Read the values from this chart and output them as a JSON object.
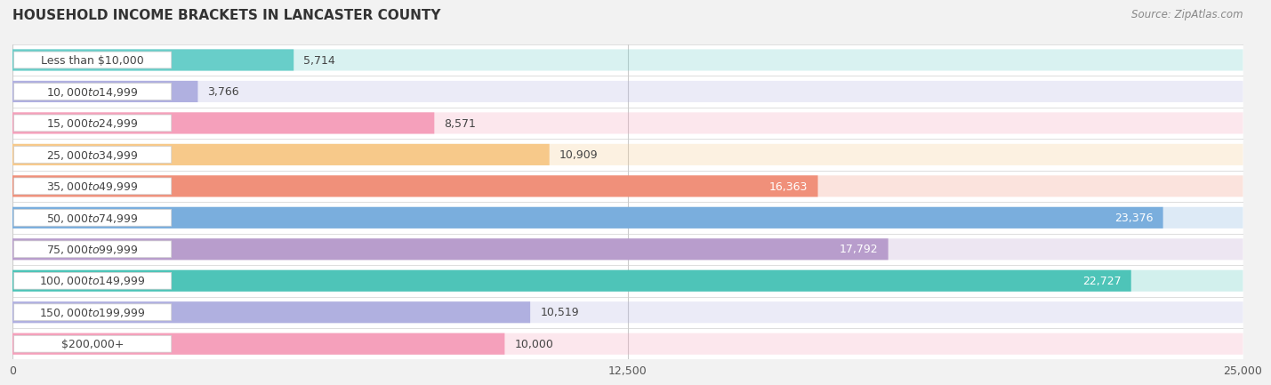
{
  "title": "HOUSEHOLD INCOME BRACKETS IN LANCASTER COUNTY",
  "source": "Source: ZipAtlas.com",
  "categories": [
    "Less than $10,000",
    "$10,000 to $14,999",
    "$15,000 to $24,999",
    "$25,000 to $34,999",
    "$35,000 to $49,999",
    "$50,000 to $74,999",
    "$75,000 to $99,999",
    "$100,000 to $149,999",
    "$150,000 to $199,999",
    "$200,000+"
  ],
  "values": [
    5714,
    3766,
    8571,
    10909,
    16363,
    23376,
    17792,
    22727,
    10519,
    10000
  ],
  "bar_colors": [
    "#68cec9",
    "#b0b0e0",
    "#f5a0bb",
    "#f7c98a",
    "#f0907a",
    "#7aaedd",
    "#b89dcc",
    "#4ec4b8",
    "#b0b0e0",
    "#f5a0bb"
  ],
  "value_inside": [
    false,
    false,
    false,
    false,
    true,
    true,
    true,
    true,
    false,
    false
  ],
  "xlim": [
    0,
    25000
  ],
  "xticks": [
    0,
    12500,
    25000
  ],
  "xtick_labels": [
    "0",
    "12,500",
    "25,000"
  ],
  "background_color": "#f2f2f2",
  "row_bg_color": "#ffffff",
  "bar_full_bg": "#e8e8e8",
  "title_fontsize": 11,
  "source_fontsize": 8.5,
  "label_fontsize": 9,
  "value_fontsize": 9,
  "tick_fontsize": 9,
  "bar_height": 0.68,
  "pill_color": "#ffffff",
  "pill_text_color": "#444444",
  "value_inside_color": "#ffffff",
  "value_outside_color": "#444444"
}
